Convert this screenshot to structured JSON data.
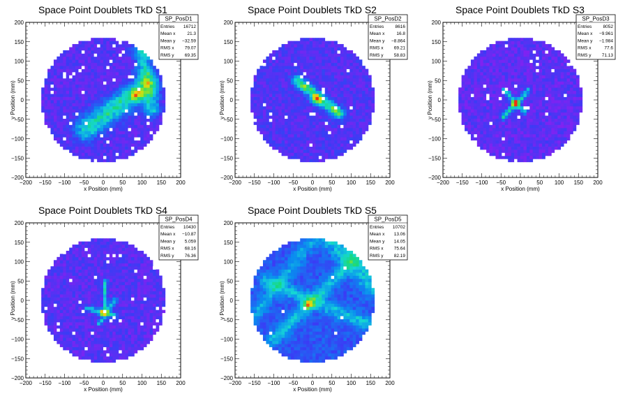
{
  "chart_data": [
    {
      "type": "heatmap",
      "title": "Space Point Doublets TkD S1",
      "xlabel": "x Position (mm)",
      "ylabel": "y Position (mm)",
      "xlim": [
        -200,
        200
      ],
      "ylim": [
        -200,
        200
      ],
      "xticks": [
        "−200",
        "−150",
        "−100",
        "−50",
        "0",
        "50",
        "100",
        "150",
        "200"
      ],
      "yticks": [
        "200",
        "150",
        "100",
        "50",
        "0",
        "−50",
        "−100",
        "−150",
        "−200"
      ],
      "stats": {
        "name": "SP_PosD1",
        "rows": [
          {
            "label": "Entries",
            "value": "16712"
          },
          {
            "label": "Mean x",
            "value": "21.3"
          },
          {
            "label": "Mean y",
            "value": "−32.59"
          },
          {
            "label": "RMS x",
            "value": "79.07"
          },
          {
            "label": "RMS y",
            "value": "69.35"
          }
        ]
      },
      "features": {
        "radius": 160,
        "base": 0.05,
        "bands": [
          {
            "x1": -45,
            "y1": -75,
            "x2": 115,
            "y2": 40,
            "w": 20,
            "amp": 0.38
          },
          {
            "x1": 95,
            "y1": 150,
            "x2": 125,
            "y2": -25,
            "w": 14,
            "amp": 0.3
          }
        ],
        "blobs": [
          {
            "x": 85,
            "y": 15,
            "s": 10,
            "amp": 0.45
          }
        ],
        "holes": 40
      }
    },
    {
      "type": "heatmap",
      "title": "Space Point Doublets TkD S2",
      "xlabel": "x Position (mm)",
      "ylabel": "y Position (mm)",
      "xlim": [
        -200,
        200
      ],
      "ylim": [
        -200,
        200
      ],
      "xticks": [
        "−200",
        "−150",
        "−100",
        "−50",
        "0",
        "50",
        "100",
        "150",
        "200"
      ],
      "yticks": [
        "200",
        "150",
        "100",
        "50",
        "0",
        "−50",
        "−100",
        "−150",
        "−200"
      ],
      "stats": {
        "name": "SP_PosD2",
        "rows": [
          {
            "label": "Entries",
            "value": "8616"
          },
          {
            "label": "Mean x",
            "value": "16.8"
          },
          {
            "label": "Mean y",
            "value": "−8.864"
          },
          {
            "label": "RMS x",
            "value": "69.21"
          },
          {
            "label": "RMS y",
            "value": "58.83"
          }
        ]
      },
      "features": {
        "radius": 160,
        "base": 0.06,
        "bands": [
          {
            "x1": -40,
            "y1": 50,
            "x2": 70,
            "y2": -35,
            "w": 9,
            "amp": 0.48
          }
        ],
        "blobs": [
          {
            "x": 10,
            "y": 0,
            "s": 9,
            "amp": 0.45
          }
        ],
        "holes": 30
      }
    },
    {
      "type": "heatmap",
      "title": "Space Point Doublets TkD S3",
      "xlabel": "x Position (mm)",
      "ylabel": "y Position (mm)",
      "xlim": [
        -200,
        200
      ],
      "ylim": [
        -200,
        200
      ],
      "xticks": [
        "−200",
        "−150",
        "−100",
        "−50",
        "0",
        "50",
        "100",
        "150",
        "200"
      ],
      "yticks": [
        "200",
        "150",
        "100",
        "50",
        "0",
        "−50",
        "−100",
        "−150",
        "−200"
      ],
      "stats": {
        "name": "SP_PosD3",
        "rows": [
          {
            "label": "Entries",
            "value": "8052"
          },
          {
            "label": "Mean x",
            "value": "−9.961"
          },
          {
            "label": "Mean y",
            "value": "−1.984"
          },
          {
            "label": "RMS x",
            "value": "77.6"
          },
          {
            "label": "RMS y",
            "value": "71.13"
          }
        ]
      },
      "features": {
        "radius": 160,
        "base": 0.04,
        "bands": [
          {
            "x1": -45,
            "y1": -45,
            "x2": 20,
            "y2": 25,
            "w": 5,
            "amp": 0.35
          },
          {
            "x1": -40,
            "y1": 25,
            "x2": 10,
            "y2": -30,
            "w": 5,
            "amp": 0.3
          }
        ],
        "blobs": [
          {
            "x": -15,
            "y": -10,
            "s": 6,
            "amp": 0.6
          }
        ],
        "holes": 25
      }
    },
    {
      "type": "heatmap",
      "title": "Space Point Doublets TkD S4",
      "xlabel": "x Position (mm)",
      "ylabel": "y Position (mm)",
      "xlim": [
        -200,
        200
      ],
      "ylim": [
        -200,
        200
      ],
      "xticks": [
        "−200",
        "−150",
        "−100",
        "−50",
        "0",
        "50",
        "100",
        "150",
        "200"
      ],
      "yticks": [
        "200",
        "150",
        "100",
        "50",
        "0",
        "−50",
        "−100",
        "−150",
        "−200"
      ],
      "stats": {
        "name": "SP_PosD4",
        "rows": [
          {
            "label": "Entries",
            "value": "10430"
          },
          {
            "label": "Mean x",
            "value": "−10.87"
          },
          {
            "label": "Mean y",
            "value": "5.059"
          },
          {
            "label": "RMS x",
            "value": "68.16"
          },
          {
            "label": "RMS y",
            "value": "76.36"
          }
        ]
      },
      "features": {
        "radius": 160,
        "base": 0.05,
        "bands": [
          {
            "x1": 5,
            "y1": -30,
            "x2": 5,
            "y2": 50,
            "w": 4,
            "amp": 0.3
          },
          {
            "x1": -40,
            "y1": -20,
            "x2": 30,
            "y2": -40,
            "w": 5,
            "amp": 0.3
          },
          {
            "x1": -10,
            "y1": -60,
            "x2": 30,
            "y2": 0,
            "w": 5,
            "amp": 0.25
          }
        ],
        "blobs": [
          {
            "x": 0,
            "y": -30,
            "s": 6,
            "amp": 0.65
          }
        ],
        "holes": 30
      }
    },
    {
      "type": "heatmap",
      "title": "Space Point Doublets TkD S5",
      "xlabel": "x Position (mm)",
      "ylabel": "y Position (mm)",
      "xlim": [
        -200,
        200
      ],
      "ylim": [
        -200,
        200
      ],
      "xticks": [
        "−200",
        "−150",
        "−100",
        "−50",
        "0",
        "50",
        "100",
        "150",
        "200"
      ],
      "yticks": [
        "200",
        "150",
        "100",
        "50",
        "0",
        "−50",
        "−100",
        "−150",
        "−200"
      ],
      "stats": {
        "name": "SP_PosD5",
        "rows": [
          {
            "label": "Entries",
            "value": "10702"
          },
          {
            "label": "Mean x",
            "value": "13.06"
          },
          {
            "label": "Mean y",
            "value": "14.05"
          },
          {
            "label": "RMS x",
            "value": "75.64"
          },
          {
            "label": "RMS y",
            "value": "82.19"
          }
        ]
      },
      "features": {
        "radius": 160,
        "base": 0.14,
        "bands": [
          {
            "x1": -120,
            "y1": 50,
            "x2": 140,
            "y2": -60,
            "w": 12,
            "amp": 0.2
          },
          {
            "x1": -100,
            "y1": -100,
            "x2": 130,
            "y2": 130,
            "w": 12,
            "amp": 0.2
          },
          {
            "x1": 50,
            "y1": 160,
            "x2": 160,
            "y2": 40,
            "w": 20,
            "amp": 0.22
          },
          {
            "x1": -150,
            "y1": -40,
            "x2": 0,
            "y2": 160,
            "w": 12,
            "amp": 0.15
          }
        ],
        "blobs": [
          {
            "x": -10,
            "y": -10,
            "s": 8,
            "amp": 0.45
          }
        ],
        "holes": 12
      }
    }
  ],
  "colors": {
    "axis": "#000000",
    "background": "#ffffff",
    "palette": [
      "#9c18f0",
      "#3a3cf5",
      "#0a8af0",
      "#16d6d6",
      "#18d87a",
      "#a6e61a",
      "#f0d010",
      "#f03010"
    ]
  }
}
